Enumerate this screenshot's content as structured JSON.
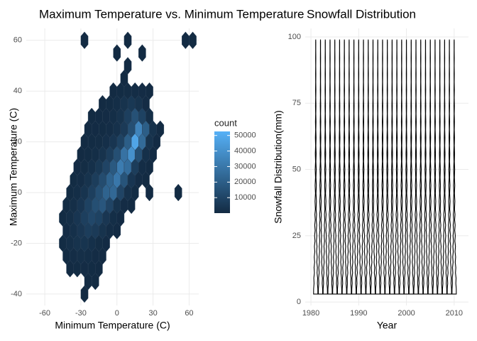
{
  "chart_data": [
    {
      "type": "hexbin",
      "title": "Maximum Temperature vs. Minimum Temperature",
      "x_label": "Minimum Temperature (C)",
      "y_label": "Maximum Temperature (C)",
      "xlim": [
        -75.4,
        68
      ],
      "ylim": [
        -44.5,
        64.7
      ],
      "xticks": [
        -60,
        -30,
        0,
        30,
        60
      ],
      "yticks": [
        -40,
        -20,
        0,
        20,
        40,
        60
      ],
      "grid": true,
      "legend_title": "count",
      "low_color": "#132B43",
      "high_color": "#56B1F7",
      "clim": [
        50,
        52600
      ],
      "legend_ticks": [
        10000,
        20000,
        30000,
        40000,
        50000
      ],
      "rows": [
        {
          "y": -40,
          "x": [
            -27
          ],
          "counts": [
            50
          ]
        },
        {
          "y": -35,
          "x": [
            -24,
            -18
          ],
          "counts": [
            80,
            60
          ]
        },
        {
          "y": -30,
          "x": [
            -39,
            -33,
            -27,
            -21,
            -15
          ],
          "counts": [
            150,
            400,
            600,
            300,
            100
          ]
        },
        {
          "y": -25,
          "x": [
            -42,
            -36,
            -30,
            -24,
            -18,
            -12
          ],
          "counts": [
            300,
            900,
            1500,
            1200,
            500,
            150
          ]
        },
        {
          "y": -20,
          "x": [
            -45,
            -39,
            -33,
            -27,
            -21,
            -15,
            -9
          ],
          "counts": [
            400,
            1500,
            3000,
            3500,
            2000,
            700,
            200
          ]
        },
        {
          "y": -15,
          "x": [
            -42,
            -36,
            -30,
            -24,
            -18,
            -12,
            -6,
            0
          ],
          "counts": [
            500,
            2000,
            4500,
            7000,
            6000,
            3000,
            900,
            200
          ]
        },
        {
          "y": -10,
          "x": [
            -45,
            -39,
            -33,
            -27,
            -21,
            -15,
            -9,
            -3,
            3
          ],
          "counts": [
            300,
            1500,
            4000,
            8000,
            11000,
            9000,
            4500,
            1200,
            200
          ]
        },
        {
          "y": -5,
          "x": [
            -42,
            -36,
            -30,
            -24,
            -18,
            -12,
            -6,
            0,
            6,
            12
          ],
          "counts": [
            400,
            1500,
            4000,
            9000,
            14000,
            17000,
            10000,
            3000,
            600,
            150
          ]
        },
        {
          "y": 0,
          "x": [
            -39,
            -33,
            -27,
            -21,
            -15,
            -9,
            -3,
            3,
            9,
            15,
            27,
            51
          ],
          "counts": [
            300,
            1200,
            3500,
            8000,
            14000,
            22000,
            24000,
            10000,
            2500,
            400,
            100,
            50
          ]
        },
        {
          "y": 5,
          "x": [
            -36,
            -30,
            -24,
            -18,
            -12,
            -6,
            0,
            6,
            12,
            18,
            24
          ],
          "counts": [
            250,
            900,
            3000,
            7000,
            13000,
            22000,
            30000,
            16000,
            4000,
            600,
            100
          ]
        },
        {
          "y": 10,
          "x": [
            -33,
            -27,
            -21,
            -15,
            -9,
            -3,
            3,
            9,
            15,
            21,
            27
          ],
          "counts": [
            200,
            700,
            2000,
            5000,
            10000,
            18000,
            32000,
            26000,
            7000,
            1000,
            150
          ]
        },
        {
          "y": 15,
          "x": [
            -30,
            -24,
            -18,
            -12,
            -6,
            0,
            6,
            12,
            18,
            24,
            30
          ],
          "counts": [
            150,
            400,
            1200,
            3000,
            7000,
            14000,
            28000,
            40000,
            14000,
            2000,
            200
          ]
        },
        {
          "y": 20,
          "x": [
            -27,
            -21,
            -15,
            -9,
            -3,
            3,
            9,
            15,
            21,
            27,
            33
          ],
          "counts": [
            100,
            250,
            700,
            1800,
            4000,
            9000,
            20000,
            48000,
            25000,
            3000,
            200
          ]
        },
        {
          "y": 25,
          "x": [
            -24,
            -18,
            -12,
            -6,
            0,
            6,
            12,
            18,
            24,
            30,
            36
          ],
          "counts": [
            100,
            200,
            400,
            1000,
            2500,
            6000,
            14000,
            35000,
            20000,
            3000,
            150
          ]
        },
        {
          "y": 30,
          "x": [
            -21,
            -15,
            -9,
            -3,
            3,
            9,
            15,
            21,
            27
          ],
          "counts": [
            100,
            200,
            500,
            1200,
            3000,
            8000,
            15000,
            9000,
            1500
          ]
        },
        {
          "y": 35,
          "x": [
            -12,
            -6,
            0,
            6,
            12,
            18,
            24
          ],
          "counts": [
            150,
            400,
            1200,
            3000,
            5000,
            3000,
            600
          ]
        },
        {
          "y": 40,
          "x": [
            -3,
            3,
            9,
            15,
            21,
            27
          ],
          "counts": [
            100,
            300,
            700,
            1000,
            500,
            150
          ]
        },
        {
          "y": 45,
          "x": [
            6
          ],
          "counts": [
            50
          ]
        },
        {
          "y": 50,
          "x": [
            9
          ],
          "counts": [
            50
          ]
        },
        {
          "y": 55,
          "x": [
            0,
            21
          ],
          "counts": [
            50,
            50
          ]
        },
        {
          "y": 60,
          "x": [
            -27,
            9,
            57,
            63
          ],
          "counts": [
            50,
            50,
            50,
            50
          ]
        }
      ]
    },
    {
      "type": "violin",
      "title": "Snowfall Distribution",
      "x_label": "Year",
      "y_label": "Snowfall Distribution(mm)",
      "xlim": [
        1978.8,
        2013
      ],
      "ylim": [
        -1.3,
        103.2
      ],
      "xticks": [
        1980,
        1990,
        2000,
        2010
      ],
      "yticks": [
        0,
        25,
        50,
        75,
        100
      ],
      "grid": true,
      "color": "#000000",
      "x": [
        1981,
        1982,
        1983,
        1984,
        1985,
        1986,
        1987,
        1988,
        1989,
        1990,
        1991,
        1992,
        1993,
        1994,
        1995,
        1996,
        1997,
        1998,
        1999,
        2000,
        2001,
        2002,
        2003,
        2004,
        2005,
        2006,
        2007,
        2008,
        2009,
        2010
      ],
      "profile": {
        "y": [
          3,
          5,
          7,
          9,
          11,
          13,
          15,
          17,
          19,
          21,
          23,
          25,
          27,
          29,
          31,
          33,
          35,
          38,
          41,
          44,
          47,
          50,
          53,
          56,
          59,
          62,
          65,
          68,
          71,
          74,
          77,
          80,
          83,
          86,
          89,
          92,
          95,
          98,
          99
        ],
        "width": [
          0.9,
          0.88,
          0.7,
          0.8,
          0.55,
          0.7,
          0.45,
          0.62,
          0.38,
          0.55,
          0.3,
          0.48,
          0.25,
          0.42,
          0.2,
          0.36,
          0.15,
          0.3,
          0.12,
          0.26,
          0.1,
          0.22,
          0.08,
          0.18,
          0.06,
          0.15,
          0.05,
          0.12,
          0.04,
          0.1,
          0.03,
          0.08,
          0.03,
          0.06,
          0.02,
          0.05,
          0.02,
          0.03,
          0
        ]
      }
    }
  ]
}
